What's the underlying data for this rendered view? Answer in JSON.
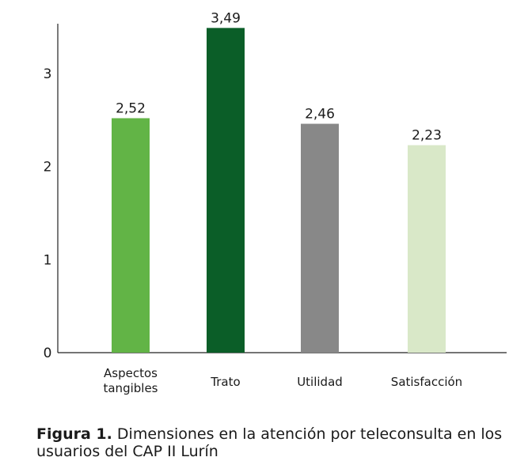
{
  "chart_data": {
    "type": "bar",
    "categories": [
      "Aspectos\ntangibles",
      "Trato",
      "Utilidad",
      "Satisfacción"
    ],
    "values": [
      2.52,
      3.49,
      2.46,
      2.23
    ],
    "value_labels": [
      "2,52",
      "3,49",
      "2,46",
      "2,23"
    ],
    "colors": [
      "#62b446",
      "#0b5e28",
      "#888888",
      "#d9e8c8"
    ],
    "yticks": [
      "0",
      "1",
      "2",
      "3"
    ],
    "ylim": [
      0,
      3.6
    ],
    "grid": false,
    "title": "",
    "xlabel": "",
    "ylabel": ""
  },
  "caption": {
    "label": "Figura 1.",
    "text": " Dimensiones en la atención por teleconsulta en los usuarios del CAP II Lurín"
  }
}
